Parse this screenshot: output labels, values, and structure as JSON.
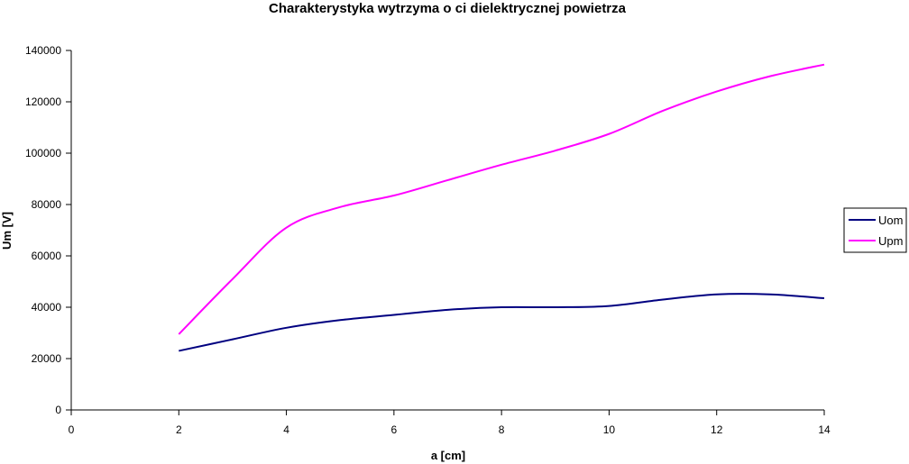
{
  "chart_data": {
    "type": "line",
    "title": "Charakterystyka wytrzyma o   ci dielektrycznej powietrza",
    "xlabel": "a [cm]",
    "ylabel": "Um [V]",
    "xlim": [
      0,
      14
    ],
    "ylim": [
      0,
      140000
    ],
    "x_ticks": [
      "0",
      "2",
      "4",
      "6",
      "8",
      "10",
      "12",
      "14"
    ],
    "y_ticks": [
      "0",
      "20000",
      "40000",
      "60000",
      "80000",
      "100000",
      "120000",
      "140000"
    ],
    "grid": false,
    "legend_position": "right",
    "x": [
      2,
      3,
      4,
      5,
      6,
      7,
      8,
      9,
      10,
      11,
      12,
      13,
      14
    ],
    "series": [
      {
        "name": "Uom",
        "color": "#000080",
        "values": [
          23000,
          27500,
          32000,
          35000,
          37000,
          39000,
          40000,
          40000,
          40500,
          43000,
          45000,
          45000,
          43500
        ]
      },
      {
        "name": "Upm",
        "color": "#ff00ff",
        "values": [
          29500,
          51000,
          71000,
          79000,
          83500,
          89500,
          95500,
          101000,
          107500,
          116500,
          124000,
          130000,
          134500
        ]
      }
    ]
  }
}
